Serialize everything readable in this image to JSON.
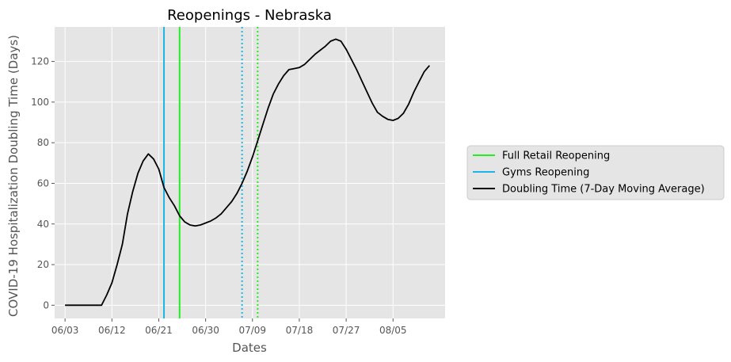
{
  "chart_data": {
    "type": "line",
    "title": "Reopenings - Nebraska",
    "xlabel": "Dates",
    "ylabel": "COVID-19 Hospitalization Doubling Time (Days)",
    "x_type": "date",
    "year": 2020,
    "xlim": [
      "2020-06-01",
      "2020-08-15"
    ],
    "ylim": [
      -6.5,
      137
    ],
    "x_ticks": [
      "06/03",
      "06/12",
      "06/21",
      "06/30",
      "07/09",
      "07/18",
      "07/27",
      "08/05"
    ],
    "x_tick_dates": [
      "2020-06-03",
      "2020-06-12",
      "2020-06-21",
      "2020-06-30",
      "2020-07-09",
      "2020-07-18",
      "2020-07-27",
      "2020-08-05"
    ],
    "y_ticks": [
      0,
      20,
      40,
      60,
      80,
      100,
      120
    ],
    "grid": true,
    "background": "#e5e5e5",
    "legend_position": "outside-right",
    "series": [
      {
        "name": "Doubling Time (7-Day Moving Average)",
        "color": "#000000",
        "points": [
          [
            "2020-06-03",
            0
          ],
          [
            "2020-06-04",
            0
          ],
          [
            "2020-06-05",
            0
          ],
          [
            "2020-06-06",
            0
          ],
          [
            "2020-06-07",
            0
          ],
          [
            "2020-06-08",
            0
          ],
          [
            "2020-06-09",
            0
          ],
          [
            "2020-06-10",
            0
          ],
          [
            "2020-06-11",
            5
          ],
          [
            "2020-06-12",
            11
          ],
          [
            "2020-06-13",
            20
          ],
          [
            "2020-06-14",
            30
          ],
          [
            "2020-06-15",
            45
          ],
          [
            "2020-06-16",
            56
          ],
          [
            "2020-06-17",
            65
          ],
          [
            "2020-06-18",
            71
          ],
          [
            "2020-06-19",
            74.5
          ],
          [
            "2020-06-20",
            72
          ],
          [
            "2020-06-21",
            67
          ],
          [
            "2020-06-22",
            58
          ],
          [
            "2020-06-23",
            53
          ],
          [
            "2020-06-24",
            49
          ],
          [
            "2020-06-25",
            44
          ],
          [
            "2020-06-26",
            41
          ],
          [
            "2020-06-27",
            39.5
          ],
          [
            "2020-06-28",
            39
          ],
          [
            "2020-06-29",
            39.5
          ],
          [
            "2020-06-30",
            40.5
          ],
          [
            "2020-07-01",
            41.5
          ],
          [
            "2020-07-02",
            43
          ],
          [
            "2020-07-03",
            45
          ],
          [
            "2020-07-04",
            48
          ],
          [
            "2020-07-05",
            51
          ],
          [
            "2020-07-06",
            55
          ],
          [
            "2020-07-07",
            60
          ],
          [
            "2020-07-08",
            66
          ],
          [
            "2020-07-09",
            73
          ],
          [
            "2020-07-10",
            81
          ],
          [
            "2020-07-11",
            89
          ],
          [
            "2020-07-12",
            97
          ],
          [
            "2020-07-13",
            104
          ],
          [
            "2020-07-14",
            109
          ],
          [
            "2020-07-15",
            113
          ],
          [
            "2020-07-16",
            116
          ],
          [
            "2020-07-17",
            116.5
          ],
          [
            "2020-07-18",
            117
          ],
          [
            "2020-07-19",
            118.5
          ],
          [
            "2020-07-20",
            121
          ],
          [
            "2020-07-21",
            123.5
          ],
          [
            "2020-07-22",
            125.5
          ],
          [
            "2020-07-23",
            127.5
          ],
          [
            "2020-07-24",
            130
          ],
          [
            "2020-07-25",
            131
          ],
          [
            "2020-07-26",
            130
          ],
          [
            "2020-07-27",
            126
          ],
          [
            "2020-07-28",
            121
          ],
          [
            "2020-07-29",
            116
          ],
          [
            "2020-07-30",
            110.5
          ],
          [
            "2020-07-31",
            105
          ],
          [
            "2020-08-01",
            99.5
          ],
          [
            "2020-08-02",
            95
          ],
          [
            "2020-08-03",
            93
          ],
          [
            "2020-08-04",
            91.5
          ],
          [
            "2020-08-05",
            91
          ],
          [
            "2020-08-06",
            92
          ],
          [
            "2020-08-07",
            94.5
          ],
          [
            "2020-08-08",
            99
          ],
          [
            "2020-08-09",
            105
          ],
          [
            "2020-08-10",
            110
          ],
          [
            "2020-08-11",
            115
          ],
          [
            "2020-08-12",
            118
          ]
        ]
      }
    ],
    "vlines": [
      {
        "name": "Full Retail Reopening",
        "date": "2020-06-25",
        "color": "#22ee22",
        "style": "solid",
        "in_legend": true
      },
      {
        "name": "Gyms Reopening",
        "date": "2020-06-22",
        "color": "#1ab6e6",
        "style": "solid",
        "in_legend": true
      },
      {
        "name": "",
        "date": "2020-07-07",
        "color": "#1ab6e6",
        "style": "dotted",
        "in_legend": false
      },
      {
        "name": "",
        "date": "2020-07-10",
        "color": "#22ee22",
        "style": "dotted",
        "in_legend": false
      }
    ],
    "legend_entries": [
      {
        "label": "Full Retail Reopening",
        "color": "#22ee22"
      },
      {
        "label": "Gyms Reopening",
        "color": "#1ab6e6"
      },
      {
        "label": "Doubling Time (7-Day Moving Average)",
        "color": "#000000"
      }
    ]
  }
}
